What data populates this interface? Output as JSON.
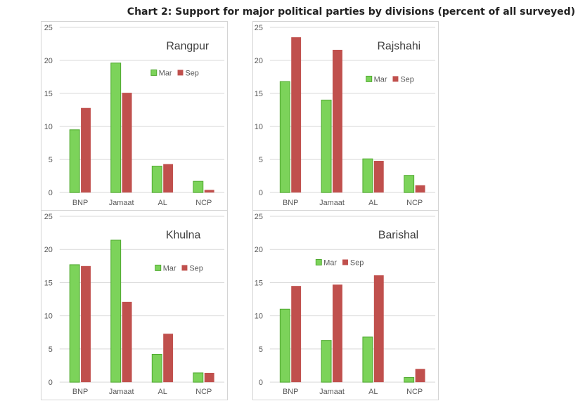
{
  "title": "Chart 2: Support for major political parties by divisions (percent of all surveyed)",
  "colors": {
    "mar": "#7cd35a",
    "mar_edge": "#4ea82e",
    "sep": "#c0504d",
    "grid": "#d9d9d9",
    "axis_text": "#595959",
    "panel_title": "#404040"
  },
  "chart_data": [
    {
      "type": "bar",
      "title": "Rangpur",
      "categories": [
        "BNP",
        "Jamaat",
        "AL",
        "NCP"
      ],
      "series": [
        {
          "name": "Mar",
          "values": [
            9.5,
            19.6,
            4.0,
            1.7
          ]
        },
        {
          "name": "Sep",
          "values": [
            12.8,
            15.1,
            4.3,
            0.4
          ]
        }
      ],
      "ylim": [
        0,
        25
      ],
      "yticks": [
        0,
        5,
        10,
        15,
        20,
        25
      ],
      "grid": true,
      "legend": "top-right"
    },
    {
      "type": "bar",
      "title": "Rajshahi",
      "categories": [
        "BNP",
        "Jamaat",
        "AL",
        "NCP"
      ],
      "series": [
        {
          "name": "Mar",
          "values": [
            16.8,
            14.0,
            5.1,
            2.6
          ]
        },
        {
          "name": "Sep",
          "values": [
            23.5,
            21.6,
            4.8,
            1.1
          ]
        }
      ],
      "ylim": [
        0,
        25
      ],
      "yticks": [
        0,
        5,
        10,
        15,
        20,
        25
      ],
      "grid": true,
      "legend": "top-right"
    },
    {
      "type": "bar",
      "title": "Khulna",
      "categories": [
        "BNP",
        "Jamaat",
        "AL",
        "NCP"
      ],
      "series": [
        {
          "name": "Mar",
          "values": [
            17.7,
            21.4,
            4.2,
            1.4
          ]
        },
        {
          "name": "Sep",
          "values": [
            17.5,
            12.1,
            7.3,
            1.4
          ]
        }
      ],
      "ylim": [
        0,
        25
      ],
      "yticks": [
        0,
        5,
        10,
        15,
        20,
        25
      ],
      "grid": true,
      "legend": "top-right"
    },
    {
      "type": "bar",
      "title": "Barishal",
      "categories": [
        "BNP",
        "Jamaat",
        "AL",
        "NCP"
      ],
      "series": [
        {
          "name": "Mar",
          "values": [
            11.0,
            6.3,
            6.8,
            0.7
          ]
        },
        {
          "name": "Sep",
          "values": [
            14.5,
            14.7,
            16.1,
            2.0
          ]
        }
      ],
      "ylim": [
        0,
        25
      ],
      "yticks": [
        0,
        5,
        10,
        15,
        20,
        25
      ],
      "grid": true,
      "legend": "top-center"
    }
  ]
}
